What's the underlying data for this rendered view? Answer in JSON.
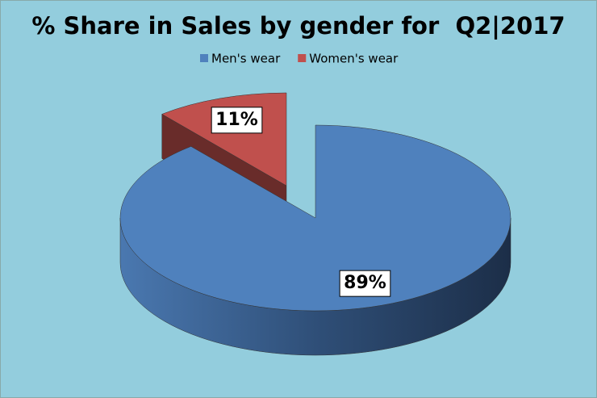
{
  "chart_data": {
    "type": "pie",
    "title": "% Share in Sales by gender for  Q2|2017",
    "categories": [
      "Men's wear",
      "Women's wear"
    ],
    "values": [
      89,
      11
    ],
    "value_labels": [
      "89%",
      "11%"
    ],
    "colors": [
      "#4f81bd",
      "#c0504d"
    ],
    "legend": "top"
  }
}
